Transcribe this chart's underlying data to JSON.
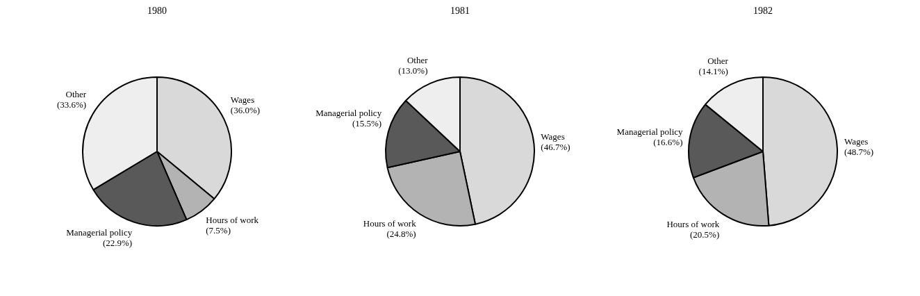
{
  "chart_data": [
    {
      "type": "pie",
      "title": "1980",
      "categories": [
        "Wages (36.0%)",
        "Hours of work (7.5%)",
        "Managerial policy (22.9%)",
        "Other (33.6%)"
      ],
      "values": [
        36.0,
        7.5,
        22.9,
        33.6
      ],
      "colors": [
        "#d9d9d9",
        "#b3b3b3",
        "#595959",
        "#eeeeee"
      ]
    },
    {
      "type": "pie",
      "title": "1981",
      "categories": [
        "Wages (46.7%)",
        "Hours of work (24.8%)",
        "Managerial policy (15.5%)",
        "Other (13.0%)"
      ],
      "values": [
        46.7,
        24.8,
        15.5,
        13.0
      ],
      "colors": [
        "#d9d9d9",
        "#b3b3b3",
        "#595959",
        "#eeeeee"
      ]
    },
    {
      "type": "pie",
      "title": "1982",
      "categories": [
        "Wages (48.7%)",
        "Hours of work (20.5%)",
        "Managerial policy (16.6%)",
        "Other (14.1%)"
      ],
      "values": [
        48.7,
        20.5,
        16.6,
        14.1
      ],
      "colors": [
        "#d9d9d9",
        "#b3b3b3",
        "#595959",
        "#eeeeee"
      ]
    }
  ]
}
